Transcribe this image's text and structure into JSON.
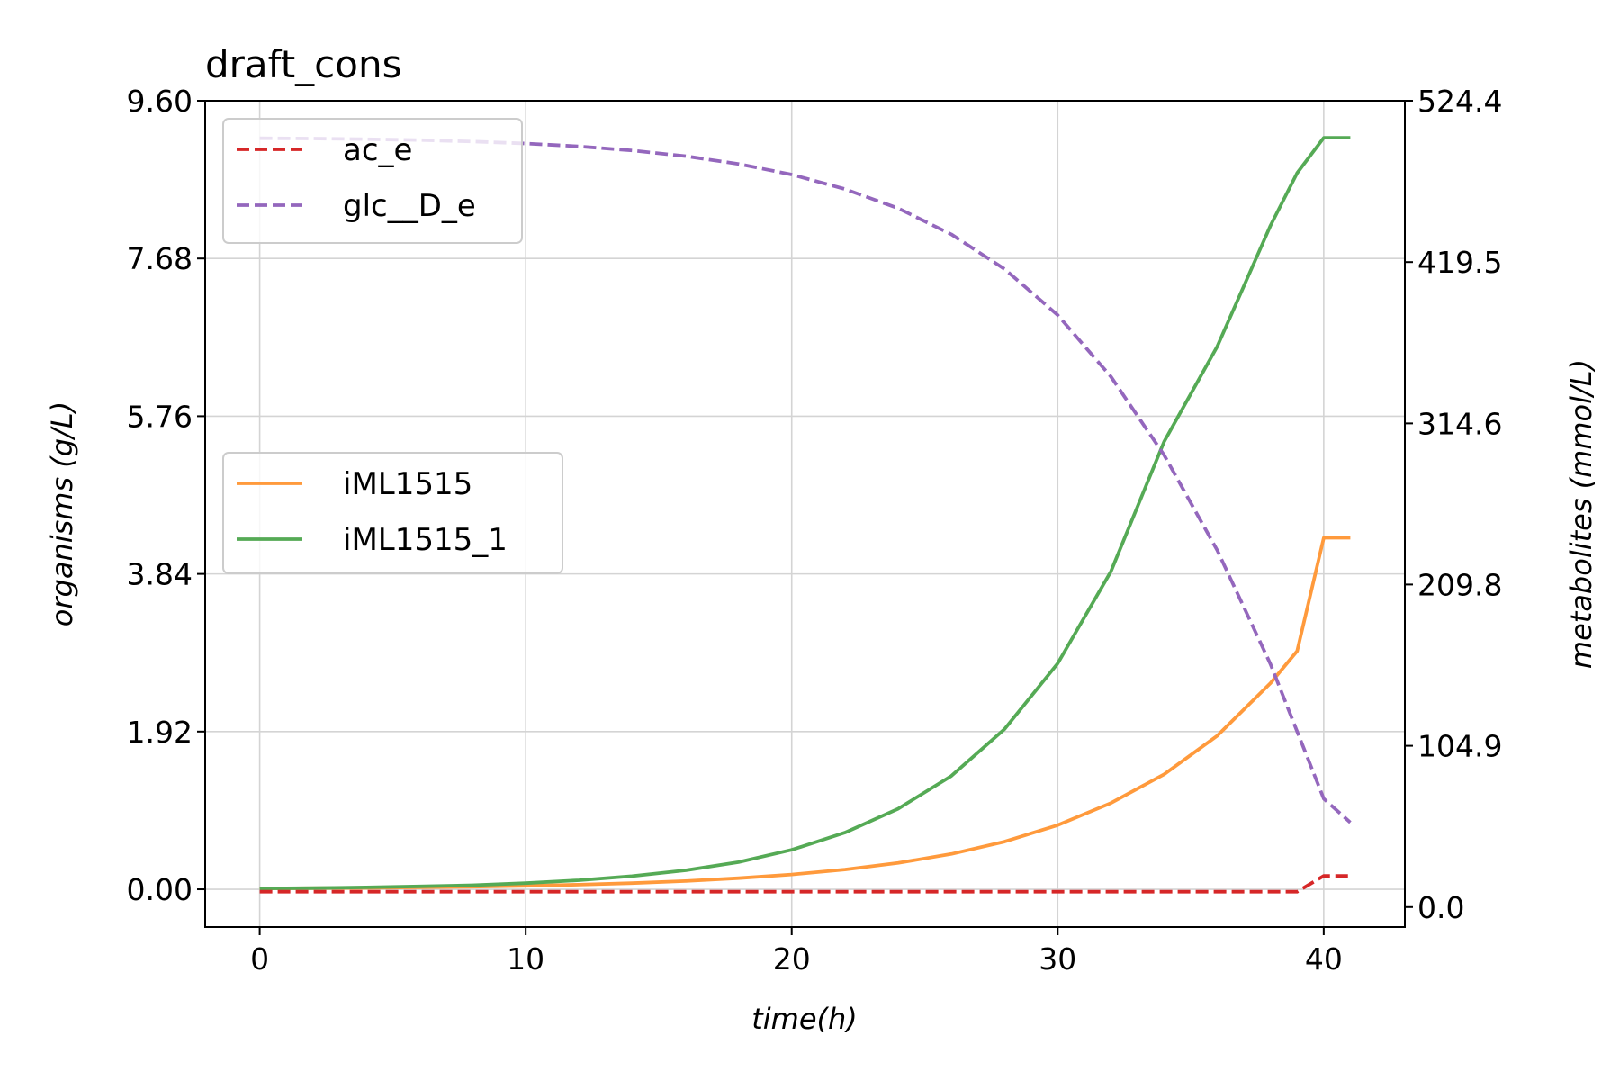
{
  "chart_data": {
    "type": "line",
    "title": "draft_cons",
    "xlabel": "time(h)",
    "ylabel_left": "organisms (g/L)",
    "ylabel_right": "metabolites (mmol/L)",
    "xlim": [
      -2.05,
      43.05
    ],
    "ylim_left": [
      -0.46,
      9.6
    ],
    "ylim_right": [
      -13.0,
      524.4
    ],
    "x_ticks": [
      0,
      10,
      20,
      30,
      40
    ],
    "y_ticks_left": [
      "0.00",
      "1.92",
      "3.84",
      "5.76",
      "7.68",
      "9.60"
    ],
    "y_ticks_right": [
      "0.0",
      "104.9",
      "209.8",
      "314.6",
      "419.5",
      "524.4"
    ],
    "grid": true,
    "organism_series": [
      {
        "name": "iML1515",
        "axis": "left",
        "color": "#ff9a3c",
        "style": "solid",
        "x": [
          0,
          2,
          4,
          6,
          8,
          10,
          12,
          14,
          16,
          18,
          20,
          22,
          24,
          26,
          28,
          30,
          32,
          34,
          36,
          38,
          39,
          40,
          41
        ],
        "y": [
          0.01,
          0.013,
          0.017,
          0.023,
          0.031,
          0.042,
          0.056,
          0.075,
          0.1,
          0.135,
          0.18,
          0.24,
          0.32,
          0.43,
          0.58,
          0.78,
          1.05,
          1.4,
          1.87,
          2.51,
          2.9,
          4.28,
          4.28
        ]
      },
      {
        "name": "iML1515_1",
        "axis": "left",
        "color": "#55aa55",
        "style": "solid",
        "x": [
          0,
          2,
          4,
          6,
          8,
          10,
          12,
          14,
          16,
          18,
          20,
          22,
          24,
          26,
          28,
          30,
          32,
          34,
          36,
          38,
          39,
          40,
          41
        ],
        "y": [
          0.01,
          0.015,
          0.023,
          0.035,
          0.05,
          0.075,
          0.11,
          0.16,
          0.23,
          0.33,
          0.48,
          0.69,
          0.98,
          1.38,
          1.95,
          2.75,
          3.87,
          5.45,
          6.61,
          8.08,
          8.72,
          9.15,
          9.15
        ]
      }
    ],
    "metabolite_series": [
      {
        "name": "ac_e",
        "axis": "right",
        "color": "#d62728",
        "style": "dashed",
        "x": [
          0,
          39,
          40,
          41
        ],
        "y": [
          10.0,
          10.0,
          20.3,
          20.3
        ]
      },
      {
        "name": "glc__D_e",
        "axis": "right",
        "color": "#9467bd",
        "style": "dashed",
        "x": [
          0,
          2,
          4,
          6,
          8,
          10,
          12,
          14,
          16,
          18,
          20,
          22,
          24,
          26,
          28,
          30,
          32,
          34,
          36,
          38,
          40,
          41
        ],
        "y": [
          500.0,
          499.8,
          499.4,
          498.8,
          497.9,
          496.6,
          494.7,
          492.0,
          488.4,
          483.3,
          476.4,
          467.0,
          454.5,
          437.5,
          415.0,
          385.0,
          345.0,
          294.0,
          232.0,
          158.0,
          70.5,
          55.0
        ]
      }
    ]
  }
}
